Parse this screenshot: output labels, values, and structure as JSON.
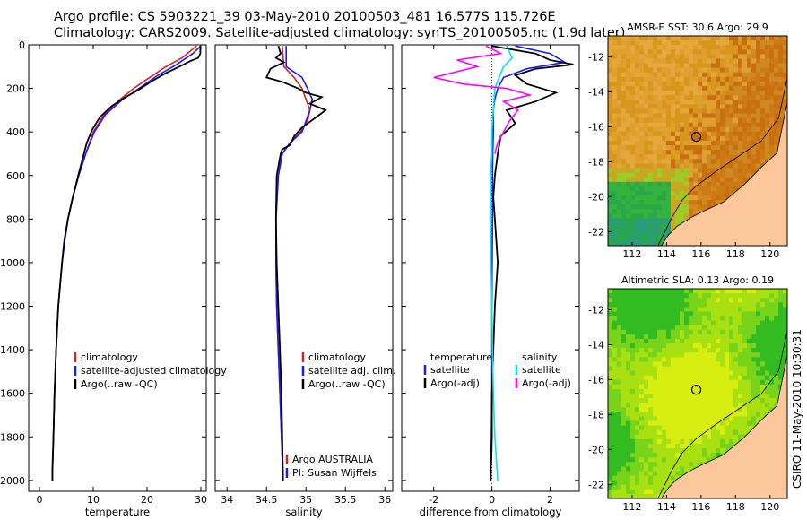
{
  "header": {
    "line1": "Argo profile: CS 5903221_39 03-May-2010 20100503_481 16.577S 115.726E",
    "line2": "Climatology: CARS2009. Satellite-adjusted climatology: synTS_20100505.nc (1.9d later)"
  },
  "credit": "CSIRO 11-May-2010 10:30:31",
  "colors": {
    "climatology": "#e02020",
    "satellite": "#1a1aff",
    "argo": "#000000",
    "sat_salt": "#00e5e5",
    "argo_salt": "#ff00ff"
  },
  "chart_data": [
    {
      "type": "line",
      "id": "temperature",
      "xlabel": "temperature",
      "xlim": [
        -2,
        31
      ],
      "ylim": [
        2050,
        0
      ],
      "xticks": [
        0,
        10,
        20,
        30
      ],
      "yticks": [
        0,
        200,
        400,
        600,
        800,
        1000,
        1200,
        1400,
        1600,
        1800,
        2000
      ],
      "legend": [
        "climatology",
        "satellite-adjusted climatology",
        "Argo(..raw -QC)"
      ],
      "series": [
        {
          "name": "climatology",
          "color": "#e02020",
          "x": [
            29.2,
            26.5,
            23.5,
            20.5,
            17.5,
            15,
            12,
            10,
            8.6,
            7.3,
            6.2,
            5.3,
            4.7,
            4.2,
            3.5,
            3.1,
            2.8,
            2.6,
            2.5,
            2.4,
            2.4
          ],
          "y": [
            5,
            60,
            100,
            150,
            200,
            250,
            320,
            400,
            500,
            600,
            700,
            800,
            900,
            1000,
            1200,
            1400,
            1600,
            1800,
            1900,
            1970,
            2000
          ]
        },
        {
          "name": "satellite-adjusted climatology",
          "color": "#1a1aff",
          "x": [
            30,
            28.5,
            25.5,
            22,
            18.5,
            15.5,
            12.3,
            10.2,
            8.6,
            7.3,
            6.2,
            5.3,
            4.7,
            4.2,
            3.5,
            3.1,
            2.8,
            2.6,
            2.5,
            2.4,
            2.4
          ],
          "y": [
            5,
            40,
            90,
            140,
            200,
            250,
            320,
            400,
            500,
            600,
            700,
            800,
            900,
            1000,
            1200,
            1400,
            1600,
            1800,
            1900,
            1970,
            2000
          ]
        },
        {
          "name": "Argo(..raw -QC)",
          "color": "#000000",
          "x": [
            29.9,
            29.9,
            29.5,
            28,
            26,
            23.5,
            21,
            18.5,
            16,
            13.5,
            11.3,
            9.8,
            8.8,
            7.2,
            6.2,
            5.3,
            4.6,
            4.2,
            3.5,
            3.1,
            2.8,
            2.6,
            2.4,
            2.4
          ],
          "y": [
            5,
            40,
            60,
            75,
            100,
            130,
            165,
            205,
            240,
            280,
            330,
            390,
            450,
            600,
            700,
            800,
            900,
            1000,
            1200,
            1400,
            1600,
            1800,
            1950,
            2000
          ]
        }
      ]
    },
    {
      "type": "line",
      "id": "salinity",
      "xlabel": "salinity",
      "xlim": [
        33.85,
        36.1
      ],
      "ylim": [
        2050,
        0
      ],
      "xticks": [
        34,
        34.5,
        35,
        35.5,
        36
      ],
      "legend": [
        "climatology",
        "satellite adj. clim.",
        "Argo(..raw -QC)"
      ],
      "annotation": [
        "Argo AUSTRALIA",
        "PI: Susan Wijffels"
      ],
      "series": [
        {
          "name": "climatology",
          "color": "#e02020",
          "x": [
            34.7,
            34.72,
            34.85,
            34.95,
            35.0,
            35.05,
            35.02,
            34.93,
            34.8,
            34.7,
            34.65,
            34.62,
            34.62,
            34.63,
            34.65,
            34.67,
            34.69,
            34.7,
            34.71
          ],
          "y": [
            5,
            100,
            150,
            200,
            250,
            300,
            350,
            400,
            450,
            500,
            600,
            800,
            1000,
            1200,
            1400,
            1600,
            1800,
            1900,
            2000
          ]
        },
        {
          "name": "satellite adj. clim.",
          "color": "#1a1aff",
          "x": [
            34.75,
            34.75,
            34.95,
            35.02,
            35.08,
            35.05,
            34.95,
            34.8,
            34.7,
            34.65,
            34.62,
            34.62,
            34.63,
            34.65,
            34.67,
            34.69,
            34.7,
            34.71
          ],
          "y": [
            5,
            100,
            150,
            200,
            250,
            300,
            400,
            450,
            500,
            600,
            800,
            1000,
            1200,
            1400,
            1600,
            1800,
            1900,
            2000
          ]
        },
        {
          "name": "Argo(..raw -QC)",
          "color": "#000000",
          "x": [
            34.65,
            34.68,
            34.62,
            34.72,
            34.55,
            34.5,
            34.7,
            34.9,
            35.0,
            35.2,
            35.05,
            35.25,
            35.1,
            34.95,
            34.85,
            34.8,
            34.7,
            34.68,
            34.63,
            34.62,
            34.63,
            34.65,
            34.67,
            34.69,
            34.7,
            34.71
          ],
          "y": [
            5,
            40,
            60,
            80,
            110,
            150,
            170,
            200,
            220,
            240,
            270,
            300,
            340,
            380,
            420,
            460,
            480,
            500,
            600,
            800,
            1000,
            1200,
            1400,
            1600,
            1800,
            2000
          ]
        }
      ]
    },
    {
      "type": "line",
      "id": "difference",
      "xlabel": "difference from climatology",
      "xlim": [
        -3.1,
        3
      ],
      "ylim": [
        2050,
        0
      ],
      "xticks": [
        -2,
        0,
        2
      ],
      "legend_left": [
        "temperature",
        "satellite",
        "Argo(-adj)"
      ],
      "legend_right": [
        "salinity",
        "satellite",
        "Argo(-adj)"
      ],
      "series": [
        {
          "name": "temperature satellite",
          "color": "#1a1aff",
          "x": [
            0.8,
            2.0,
            2.5,
            1.2,
            0.4,
            0.2,
            0.1,
            0.05,
            0.05,
            0.03,
            0.02,
            0.02,
            0.01,
            0,
            0,
            0,
            -0.02,
            -0.03,
            -0.03
          ],
          "y": [
            5,
            40,
            80,
            110,
            150,
            200,
            250,
            300,
            400,
            500,
            600,
            800,
            1000,
            1200,
            1400,
            1600,
            1800,
            1900,
            2000
          ]
        },
        {
          "name": "temperature Argo(-adj)",
          "color": "#000000",
          "x": [
            0,
            1.5,
            2.0,
            2.8,
            1.5,
            0.8,
            1.2,
            2.2,
            1.5,
            0.5,
            0.8,
            0.3,
            0.2,
            0.1,
            0.05,
            0.1,
            0.15,
            0.2,
            0.1,
            0.05,
            0,
            0,
            -0.02,
            -0.05,
            -0.05
          ],
          "y": [
            5,
            40,
            70,
            90,
            110,
            140,
            180,
            220,
            260,
            300,
            360,
            420,
            500,
            600,
            700,
            800,
            900,
            1000,
            1200,
            1400,
            1600,
            1800,
            1900,
            1960,
            2000
          ]
        },
        {
          "name": "salinity satellite",
          "color": "#00e5e5",
          "x": [
            0.5,
            0.7,
            0.4,
            0.1,
            0.05,
            0.0,
            0.0,
            -0.05,
            -0.05,
            -0.03,
            0,
            0.02,
            0.05,
            0.1,
            0.2
          ],
          "y": [
            5,
            60,
            100,
            200,
            300,
            400,
            500,
            600,
            800,
            1000,
            1200,
            1400,
            1600,
            1800,
            2000
          ]
        },
        {
          "name": "salinity Argo(-adj)",
          "color": "#ff00ff",
          "x": [
            -0.2,
            0.3,
            -1.2,
            -0.5,
            -2.0,
            -1.0,
            0.5,
            1.3,
            0.4,
            0.9,
            0.6,
            0.4,
            0.2,
            0.1
          ],
          "y": [
            5,
            40,
            70,
            100,
            150,
            180,
            200,
            230,
            260,
            300,
            350,
            400,
            450,
            500
          ]
        }
      ]
    },
    {
      "type": "heatmap",
      "id": "sst-map",
      "title": "AMSR-E SST: 30.6 Argo: 29.9",
      "xlim": [
        110.6,
        121
      ],
      "ylim": [
        -22.8,
        -10.8
      ],
      "xticks": [
        112,
        114,
        116,
        118,
        120
      ],
      "yticks": [
        -12,
        -14,
        -16,
        -18,
        -20,
        -22
      ],
      "marker": {
        "lon": 115.726,
        "lat": -16.577
      }
    },
    {
      "type": "heatmap",
      "id": "sla-map",
      "title": "Altimetric SLA: 0.13 Argo: 0.19",
      "xlim": [
        110.6,
        121
      ],
      "ylim": [
        -22.8,
        -10.8
      ],
      "xticks": [
        112,
        114,
        116,
        118,
        120
      ],
      "yticks": [
        -12,
        -14,
        -16,
        -18,
        -20,
        -22
      ],
      "marker": {
        "lon": 115.726,
        "lat": -16.577
      }
    }
  ]
}
